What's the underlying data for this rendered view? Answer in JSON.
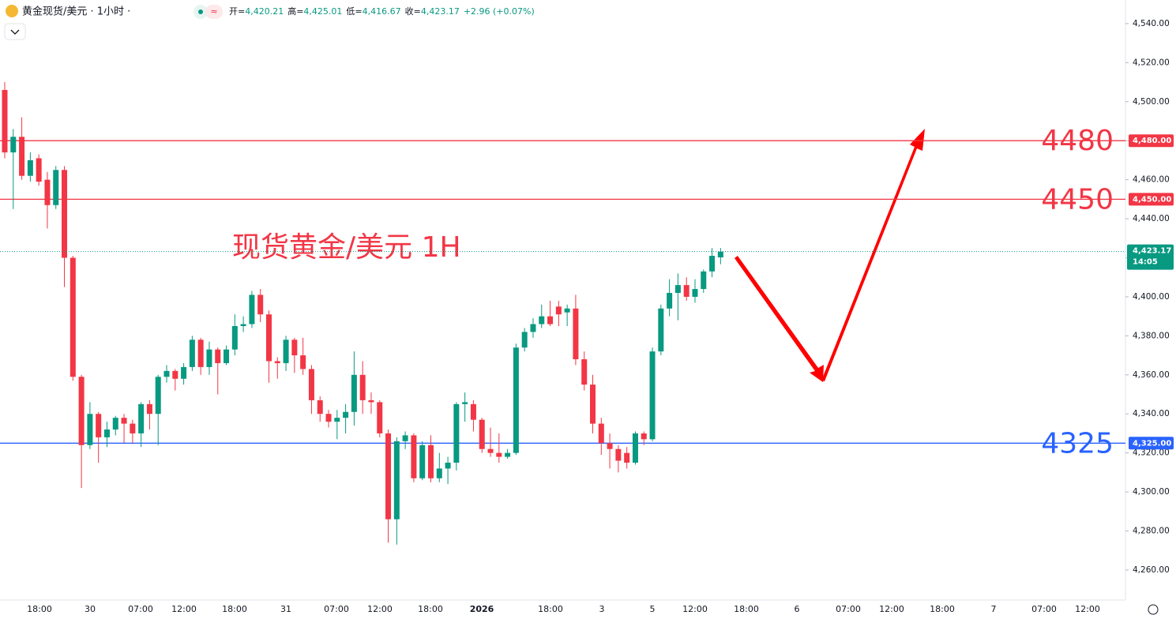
{
  "chart_data": {
    "type": "candlestick",
    "symbol": "黄金现货/美元 · 1小时 ·",
    "ohlc_header": [
      {
        "label": "开=",
        "value": "4,420.21"
      },
      {
        "label": "高=",
        "value": "4,425.01"
      },
      {
        "label": "低=",
        "value": "4,416.67"
      },
      {
        "label": "收=",
        "value": "4,423.17"
      }
    ],
    "change": "+2.96 (+0.07%)",
    "annotation": "现货黄金/美元 1H",
    "open": [
      4506,
      4474,
      4482,
      4462,
      4471,
      4460,
      4447,
      4465,
      4420,
      4359,
      4324,
      4340,
      4328,
      4332,
      4338,
      4335,
      4330,
      4345,
      4340,
      4359,
      4362,
      4358,
      4364,
      4378,
      4364,
      4373,
      4366,
      4373,
      4385,
      4386,
      4401,
      4391,
      4367,
      4366,
      4378,
      4370,
      4363,
      4347,
      4340,
      4336,
      4338,
      4341,
      4360,
      4347,
      4346,
      4330,
      4286,
      4326,
      4329,
      4307,
      4324,
      4307,
      4312,
      4315,
      4345,
      4345,
      4337,
      4322,
      4320,
      4318,
      4320,
      4374,
      4382,
      4386,
      4390,
      4395,
      4392,
      4394,
      4368,
      4355,
      4335,
      4325,
      4322,
      4320,
      4315,
      4330,
      4327,
      4372,
      4394,
      4402,
      4406,
      4400,
      4404,
      4413,
      4420.21
    ],
    "high": [
      4510,
      4486,
      4492,
      4474,
      4473,
      4464,
      4467,
      4467,
      4421,
      4360,
      4346,
      4341,
      4336,
      4339,
      4340,
      4337,
      4346,
      4347,
      4360,
      4365,
      4363,
      4366,
      4380,
      4379,
      4377,
      4374,
      4375,
      4391,
      4390,
      4403,
      4404,
      4393,
      4369,
      4380,
      4379,
      4379,
      4365,
      4349,
      4342,
      4342,
      4345,
      4372,
      4367,
      4351,
      4347,
      4332,
      4328,
      4331,
      4330,
      4326,
      4329,
      4320,
      4318,
      4346,
      4351,
      4347,
      4338,
      4333,
      4330,
      4322,
      4376,
      4384,
      4389,
      4396,
      4398,
      4398,
      4396,
      4401,
      4372,
      4360,
      4338,
      4330,
      4324,
      4323,
      4331,
      4331,
      4374,
      4396,
      4409,
      4412,
      4410,
      4409,
      4414,
      4425,
      4425.01
    ],
    "low": [
      4471,
      4445,
      4460,
      4459,
      4457,
      4435,
      4445,
      4405,
      4357,
      4302,
      4322,
      4315,
      4323,
      4329,
      4325,
      4325,
      4323,
      4332,
      4324,
      4356,
      4352,
      4355,
      4362,
      4360,
      4360,
      4350,
      4365,
      4370,
      4382,
      4384,
      4387,
      4356,
      4358,
      4362,
      4361,
      4360,
      4340,
      4336,
      4333,
      4327,
      4330,
      4334,
      4340,
      4340,
      4328,
      4274,
      4273,
      4322,
      4305,
      4306,
      4305,
      4305,
      4304,
      4311,
      4336,
      4331,
      4320,
      4318,
      4315,
      4317,
      4319,
      4372,
      4379,
      4384,
      4385,
      4385,
      4385,
      4365,
      4352,
      4330,
      4319,
      4312,
      4310,
      4312,
      4314,
      4324,
      4326,
      4370,
      4390,
      4388,
      4398,
      4397,
      4402,
      4410,
      4416.67
    ],
    "close": [
      4474,
      4482,
      4462,
      4470,
      4459,
      4447,
      4465,
      4420,
      4359,
      4324,
      4340,
      4328,
      4332,
      4338,
      4335,
      4330,
      4345,
      4340,
      4359,
      4362,
      4358,
      4364,
      4378,
      4364,
      4373,
      4366,
      4373,
      4385,
      4386,
      4401,
      4391,
      4367,
      4366,
      4378,
      4370,
      4363,
      4347,
      4340,
      4336,
      4338,
      4341,
      4360,
      4347,
      4346,
      4330,
      4286,
      4326,
      4329,
      4307,
      4324,
      4307,
      4312,
      4315,
      4345,
      4346,
      4337,
      4322,
      4320,
      4318,
      4320,
      4374,
      4382,
      4386,
      4390,
      4386,
      4391,
      4394,
      4368,
      4355,
      4335,
      4325,
      4322,
      4316,
      4315,
      4330,
      4327,
      4372,
      4394,
      4402,
      4406,
      4400,
      4404,
      4413,
      4421,
      4423.17
    ],
    "up_color": "#089981",
    "down_color": "#f23645",
    "ylim": [
      4244.6,
      4552.1
    ],
    "yticks": [
      {
        "value": 4260,
        "label": "4,260.00"
      },
      {
        "value": 4280,
        "label": "4,280.00"
      },
      {
        "value": 4300,
        "label": "4,300.00"
      },
      {
        "value": 4320,
        "label": "4,320.00"
      },
      {
        "value": 4340,
        "label": "4,340.00"
      },
      {
        "value": 4360,
        "label": "4,360.00"
      },
      {
        "value": 4380,
        "label": "4,380.00"
      },
      {
        "value": 4400,
        "label": "4,400.00"
      },
      {
        "value": 4420,
        "label": "4,420.00"
      },
      {
        "value": 4440,
        "label": "4,440.00"
      },
      {
        "value": 4460,
        "label": "4,460.00"
      },
      {
        "value": 4480,
        "label": "4,480.00"
      },
      {
        "value": 4500,
        "label": "4,500.00"
      },
      {
        "value": 4520,
        "label": "4,520.00"
      },
      {
        "value": 4540,
        "label": "4,540.00"
      }
    ],
    "x_labels": [
      "18:00",
      "30",
      "07:00",
      "12:00",
      "18:00",
      "31",
      "07:00",
      "12:00",
      "18:00",
      "2026",
      "18:00",
      "3",
      "5",
      "12:00",
      "18:00",
      "6",
      "07:00",
      "12:00",
      "18:00",
      "7",
      "07:00",
      "12:00"
    ],
    "levels": [
      {
        "value": 4480,
        "label": "4480",
        "tag": "4,480.00",
        "color": "#f23645"
      },
      {
        "value": 4450,
        "label": "4450",
        "tag": "4,450.00",
        "color": "#f23645"
      },
      {
        "value": 4325,
        "label": "4325",
        "tag": "4,325.00",
        "color": "#2962ff"
      }
    ],
    "last_price": {
      "value": 4423.17,
      "tag": "4,423.17",
      "countdown": "14:05",
      "color": "#089981"
    }
  }
}
